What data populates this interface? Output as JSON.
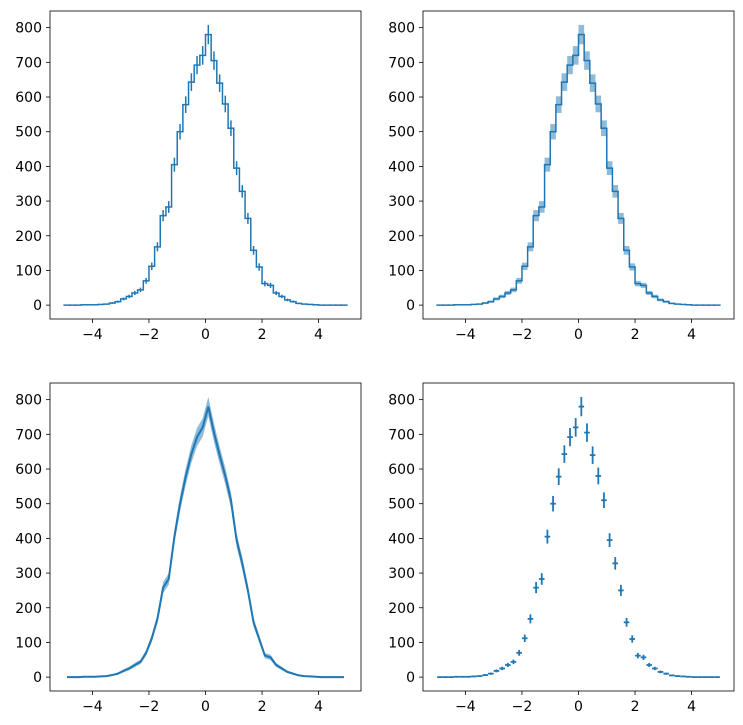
{
  "chart_data": [
    {
      "type": "histogram",
      "color": "#1f77b4",
      "bins": [
        -5,
        -4.8,
        -4.6,
        -4.4,
        -4.2,
        -4,
        -3.8,
        -3.6,
        -3.4,
        -3.2,
        -3,
        -2.8,
        -2.6,
        -2.4,
        -2.2,
        -2,
        -1.8,
        -1.6,
        -1.4,
        -1.2,
        -1,
        -0.8,
        -0.6,
        -0.4,
        -0.2,
        0,
        0.2,
        0.4,
        0.6,
        0.8,
        1,
        1.2,
        1.4,
        1.6,
        1.8,
        2,
        2.2,
        2.4,
        2.6,
        2.8,
        3,
        3.2,
        3.4,
        3.6,
        3.8,
        4,
        4.2,
        4.4,
        4.6,
        4.8,
        5
      ],
      "values": [
        0,
        0,
        0,
        1,
        1,
        1,
        2,
        3,
        6,
        10,
        18,
        25,
        35,
        44,
        70,
        112,
        168,
        258,
        283,
        405,
        500,
        578,
        643,
        692,
        720,
        780,
        705,
        640,
        580,
        510,
        395,
        328,
        250,
        158,
        110,
        62,
        57,
        35,
        25,
        15,
        10,
        5,
        3,
        2,
        1,
        0,
        0,
        0,
        0,
        0
      ],
      "errors": [
        0,
        0,
        0,
        1,
        1,
        1,
        1.4,
        1.7,
        2.4,
        3.2,
        4.2,
        5,
        5.9,
        6.6,
        8.4,
        10.6,
        13,
        16.1,
        16.8,
        20.1,
        22.4,
        24,
        25.4,
        26.3,
        26.8,
        27.9,
        26.6,
        25.3,
        24.1,
        22.6,
        19.9,
        18.1,
        15.8,
        12.6,
        10.5,
        7.9,
        7.5,
        5.9,
        5,
        3.9,
        3.2,
        2.2,
        1.7,
        1.4,
        1,
        0,
        0,
        0,
        0,
        0
      ],
      "xlim": [
        -5.5,
        5.5
      ],
      "ylim": [
        -40,
        848
      ],
      "xticks": [
        {
          "value": -4,
          "label": "−4"
        },
        {
          "value": -2,
          "label": "−2"
        },
        0,
        2,
        4
      ],
      "yticks": [
        0,
        100,
        200,
        300,
        400,
        500,
        600,
        700,
        800
      ]
    },
    {
      "type": "histogram-band",
      "color": "#1f77b4",
      "bins": [
        -5,
        -4.8,
        -4.6,
        -4.4,
        -4.2,
        -4,
        -3.8,
        -3.6,
        -3.4,
        -3.2,
        -3,
        -2.8,
        -2.6,
        -2.4,
        -2.2,
        -2,
        -1.8,
        -1.6,
        -1.4,
        -1.2,
        -1,
        -0.8,
        -0.6,
        -0.4,
        -0.2,
        0,
        0.2,
        0.4,
        0.6,
        0.8,
        1,
        1.2,
        1.4,
        1.6,
        1.8,
        2,
        2.2,
        2.4,
        2.6,
        2.8,
        3,
        3.2,
        3.4,
        3.6,
        3.8,
        4,
        4.2,
        4.4,
        4.6,
        4.8,
        5
      ],
      "values": [
        0,
        0,
        0,
        1,
        1,
        1,
        2,
        3,
        6,
        10,
        18,
        25,
        35,
        44,
        70,
        112,
        168,
        258,
        283,
        405,
        500,
        578,
        643,
        692,
        720,
        780,
        705,
        640,
        580,
        510,
        395,
        328,
        250,
        158,
        110,
        62,
        57,
        35,
        25,
        15,
        10,
        5,
        3,
        2,
        1,
        0,
        0,
        0,
        0,
        0
      ],
      "errors": [
        0,
        0,
        0,
        1,
        1,
        1,
        1.4,
        1.7,
        2.4,
        3.2,
        4.2,
        5,
        5.9,
        6.6,
        8.4,
        10.6,
        13,
        16.1,
        16.8,
        20.1,
        22.4,
        24,
        25.4,
        26.3,
        26.8,
        27.9,
        26.6,
        25.3,
        24.1,
        22.6,
        19.9,
        18.1,
        15.8,
        12.6,
        10.5,
        7.9,
        7.5,
        5.9,
        5,
        3.9,
        3.2,
        2.2,
        1.7,
        1.4,
        1,
        0,
        0,
        0,
        0,
        0
      ],
      "xlim": [
        -5.5,
        5.5
      ],
      "ylim": [
        -40,
        848
      ],
      "xticks": [
        {
          "value": -4,
          "label": "−4"
        },
        {
          "value": -2,
          "label": "−2"
        },
        0,
        2,
        4
      ],
      "yticks": [
        0,
        100,
        200,
        300,
        400,
        500,
        600,
        700,
        800
      ]
    },
    {
      "type": "line-band",
      "color": "#1f77b4",
      "x": [
        -4.9,
        -4.7,
        -4.5,
        -4.3,
        -4.1,
        -3.9,
        -3.7,
        -3.5,
        -3.3,
        -3.1,
        -2.9,
        -2.7,
        -2.5,
        -2.3,
        -2.1,
        -1.9,
        -1.7,
        -1.5,
        -1.3,
        -1.1,
        -0.9,
        -0.7,
        -0.5,
        -0.3,
        -0.1,
        0.1,
        0.3,
        0.5,
        0.7,
        0.9,
        1.1,
        1.3,
        1.5,
        1.7,
        1.9,
        2.1,
        2.3,
        2.5,
        2.7,
        2.9,
        3.1,
        3.3,
        3.5,
        3.7,
        3.9,
        4.1,
        4.3,
        4.5,
        4.7,
        4.9
      ],
      "values": [
        0,
        0,
        0,
        1,
        1,
        1,
        2,
        3,
        6,
        10,
        18,
        25,
        35,
        44,
        70,
        112,
        168,
        258,
        283,
        405,
        500,
        578,
        643,
        692,
        720,
        780,
        705,
        640,
        580,
        510,
        395,
        328,
        250,
        158,
        110,
        62,
        57,
        35,
        25,
        15,
        10,
        5,
        3,
        2,
        1,
        0,
        0,
        0,
        0,
        0
      ],
      "errors": [
        0,
        0,
        0,
        1,
        1,
        1,
        1.4,
        1.7,
        2.4,
        3.2,
        4.2,
        5,
        5.9,
        6.6,
        8.4,
        10.6,
        13,
        16.1,
        16.8,
        20.1,
        22.4,
        24,
        25.4,
        26.3,
        26.8,
        27.9,
        26.6,
        25.3,
        24.1,
        22.6,
        19.9,
        18.1,
        15.8,
        12.6,
        10.5,
        7.9,
        7.5,
        5.9,
        5,
        3.9,
        3.2,
        2.2,
        1.7,
        1.4,
        1,
        0,
        0,
        0,
        0,
        0
      ],
      "xlim": [
        -5.5,
        5.5
      ],
      "ylim": [
        -40,
        848
      ],
      "xticks": [
        {
          "value": -4,
          "label": "−4"
        },
        {
          "value": -2,
          "label": "−2"
        },
        0,
        2,
        4
      ],
      "yticks": [
        0,
        100,
        200,
        300,
        400,
        500,
        600,
        700,
        800
      ]
    },
    {
      "type": "errorbar",
      "color": "#1f77b4",
      "x": [
        -4.9,
        -4.7,
        -4.5,
        -4.3,
        -4.1,
        -3.9,
        -3.7,
        -3.5,
        -3.3,
        -3.1,
        -2.9,
        -2.7,
        -2.5,
        -2.3,
        -2.1,
        -1.9,
        -1.7,
        -1.5,
        -1.3,
        -1.1,
        -0.9,
        -0.7,
        -0.5,
        -0.3,
        -0.1,
        0.1,
        0.3,
        0.5,
        0.7,
        0.9,
        1.1,
        1.3,
        1.5,
        1.7,
        1.9,
        2.1,
        2.3,
        2.5,
        2.7,
        2.9,
        3.1,
        3.3,
        3.5,
        3.7,
        3.9,
        4.1,
        4.3,
        4.5,
        4.7,
        4.9
      ],
      "values": [
        0,
        0,
        0,
        1,
        1,
        1,
        2,
        3,
        6,
        10,
        18,
        25,
        35,
        44,
        70,
        112,
        168,
        258,
        283,
        405,
        500,
        578,
        643,
        692,
        720,
        780,
        705,
        640,
        580,
        510,
        395,
        328,
        250,
        158,
        110,
        62,
        57,
        35,
        25,
        15,
        10,
        5,
        3,
        2,
        1,
        0,
        0,
        0,
        0,
        0
      ],
      "errors": [
        0,
        0,
        0,
        1,
        1,
        1,
        1.4,
        1.7,
        2.4,
        3.2,
        4.2,
        5,
        5.9,
        6.6,
        8.4,
        10.6,
        13,
        16.1,
        16.8,
        20.1,
        22.4,
        24,
        25.4,
        26.3,
        26.8,
        27.9,
        26.6,
        25.3,
        24.1,
        22.6,
        19.9,
        18.1,
        15.8,
        12.6,
        10.5,
        7.9,
        7.5,
        5.9,
        5,
        3.9,
        3.2,
        2.2,
        1.7,
        1.4,
        1,
        0,
        0,
        0,
        0,
        0
      ],
      "xlim": [
        -5.5,
        5.5
      ],
      "ylim": [
        -40,
        848
      ],
      "xticks": [
        {
          "value": -4,
          "label": "−4"
        },
        {
          "value": -2,
          "label": "−2"
        },
        0,
        2,
        4
      ],
      "yticks": [
        0,
        100,
        200,
        300,
        400,
        500,
        600,
        700,
        800
      ]
    }
  ]
}
